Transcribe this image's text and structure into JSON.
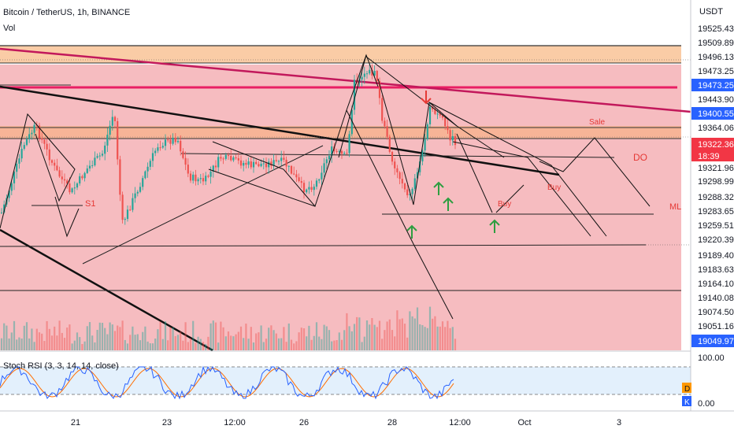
{
  "header": {
    "symbol_title": "Bitcoin / TetherUS, 1h, BINANCE",
    "indicator_vol": "Vol",
    "indicator_rsi": "Stoch RSI (3, 3, 14, 14, close)"
  },
  "price_axis": {
    "currency": "USDT",
    "labels": [
      "19525.43",
      "19509.89",
      "19496.13",
      "19473.25",
      "19473.25",
      "19443.90",
      "19400.55",
      "19364.06",
      "19322.36",
      "19321.96",
      "19298.99",
      "19288.32",
      "19283.65",
      "19259.51",
      "19220.39",
      "19189.40",
      "19183.63",
      "19164.10",
      "19140.08",
      "19074.50",
      "19051.16",
      "19049.97"
    ],
    "highlight_labels": [
      {
        "text": "19473.25",
        "color": "#2962ff"
      },
      {
        "text": "19400.55",
        "color": "#2962ff"
      },
      {
        "text": "19322.36",
        "color": "#f23645"
      },
      {
        "text": "18:39",
        "color": "#f23645"
      },
      {
        "text": "19049.97",
        "color": "#2962ff"
      }
    ]
  },
  "rsi_axis": {
    "labels": [
      "100.00",
      "0.00"
    ],
    "badges": [
      "D",
      "K"
    ]
  },
  "time_axis": {
    "labels": [
      "21",
      "23",
      "12:00",
      "26",
      "28",
      "12:00",
      "Oct",
      "3"
    ]
  },
  "annotations": {
    "sale": "Sale",
    "do": "DO",
    "buy1": "Buy",
    "buy2": "Buy",
    "ml": "ML",
    "s1": "S1"
  },
  "colors": {
    "zone_red": "#f6bcc0",
    "zone_orange": "#f9c69c",
    "line_red": "#e91e63",
    "up": "#26a69a",
    "down": "#ef5350",
    "green_arrow": "#2e9e41",
    "stoch_k": "#2962ff",
    "stoch_d": "#ff6d00",
    "price_tag": "#2962ff"
  },
  "chart_data": {
    "type": "candlestick",
    "symbol": "Bitcoin / TetherUS",
    "timeframe": "1h",
    "exchange": "BINANCE",
    "x_ticks": [
      "21",
      "23",
      "12:00",
      "26",
      "28",
      "12:00",
      "Oct",
      "3"
    ],
    "last_price": 19322.36,
    "countdown": "18:39",
    "marked_levels": [
      19473.25,
      19400.55,
      19049.97
    ],
    "indicators": [
      "Vol",
      "Stoch RSI (3, 3, 14, 14, close)"
    ],
    "stoch_rsi_range": [
      0,
      100
    ]
  }
}
